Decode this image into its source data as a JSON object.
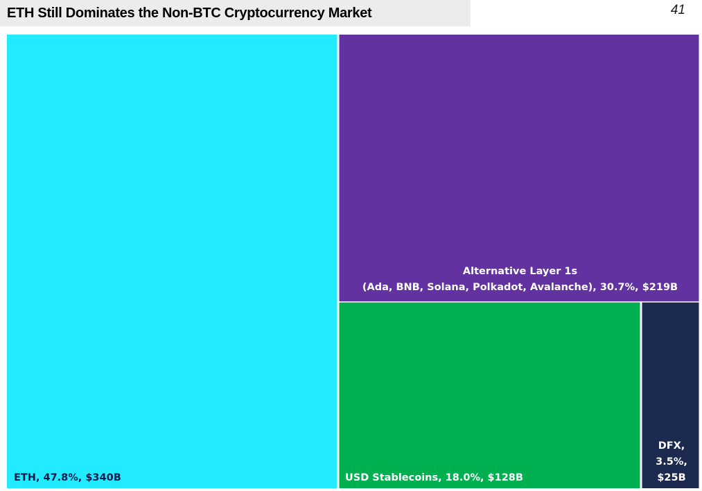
{
  "header": {
    "title": "ETH Still Dominates the Non-BTC Cryptocurrency Market",
    "page_number": "41"
  },
  "chart_data": {
    "type": "treemap",
    "title": "ETH Still Dominates the Non-BTC Cryptocurrency Market",
    "series": [
      {
        "name": "ETH",
        "share_pct": 47.8,
        "value_usd_billion": 340,
        "label_lines": [
          "ETH, 47.8%, $340B"
        ],
        "color": "#22ebff",
        "text_color": "#0d1b4c"
      },
      {
        "name": "Alternative Layer 1s",
        "share_pct": 30.7,
        "value_usd_billion": 219,
        "label_lines": [
          "Alternative Layer 1s",
          "(Ada, BNB, Solana, Polkadot, Avalanche), 30.7%, $219B"
        ],
        "color": "#6233a0",
        "text_color": "#ffffff"
      },
      {
        "name": "USD Stablecoins",
        "share_pct": 18.0,
        "value_usd_billion": 128,
        "label_lines": [
          "USD Stablecoins, 18.0%, $128B"
        ],
        "color": "#00b050",
        "text_color": "#ffffff"
      },
      {
        "name": "DFX",
        "share_pct": 3.5,
        "value_usd_billion": 25,
        "label_lines": [
          "DFX,",
          "3.5%,",
          "$25B"
        ],
        "color": "#1b2a4e",
        "text_color": "#ffffff"
      }
    ]
  }
}
